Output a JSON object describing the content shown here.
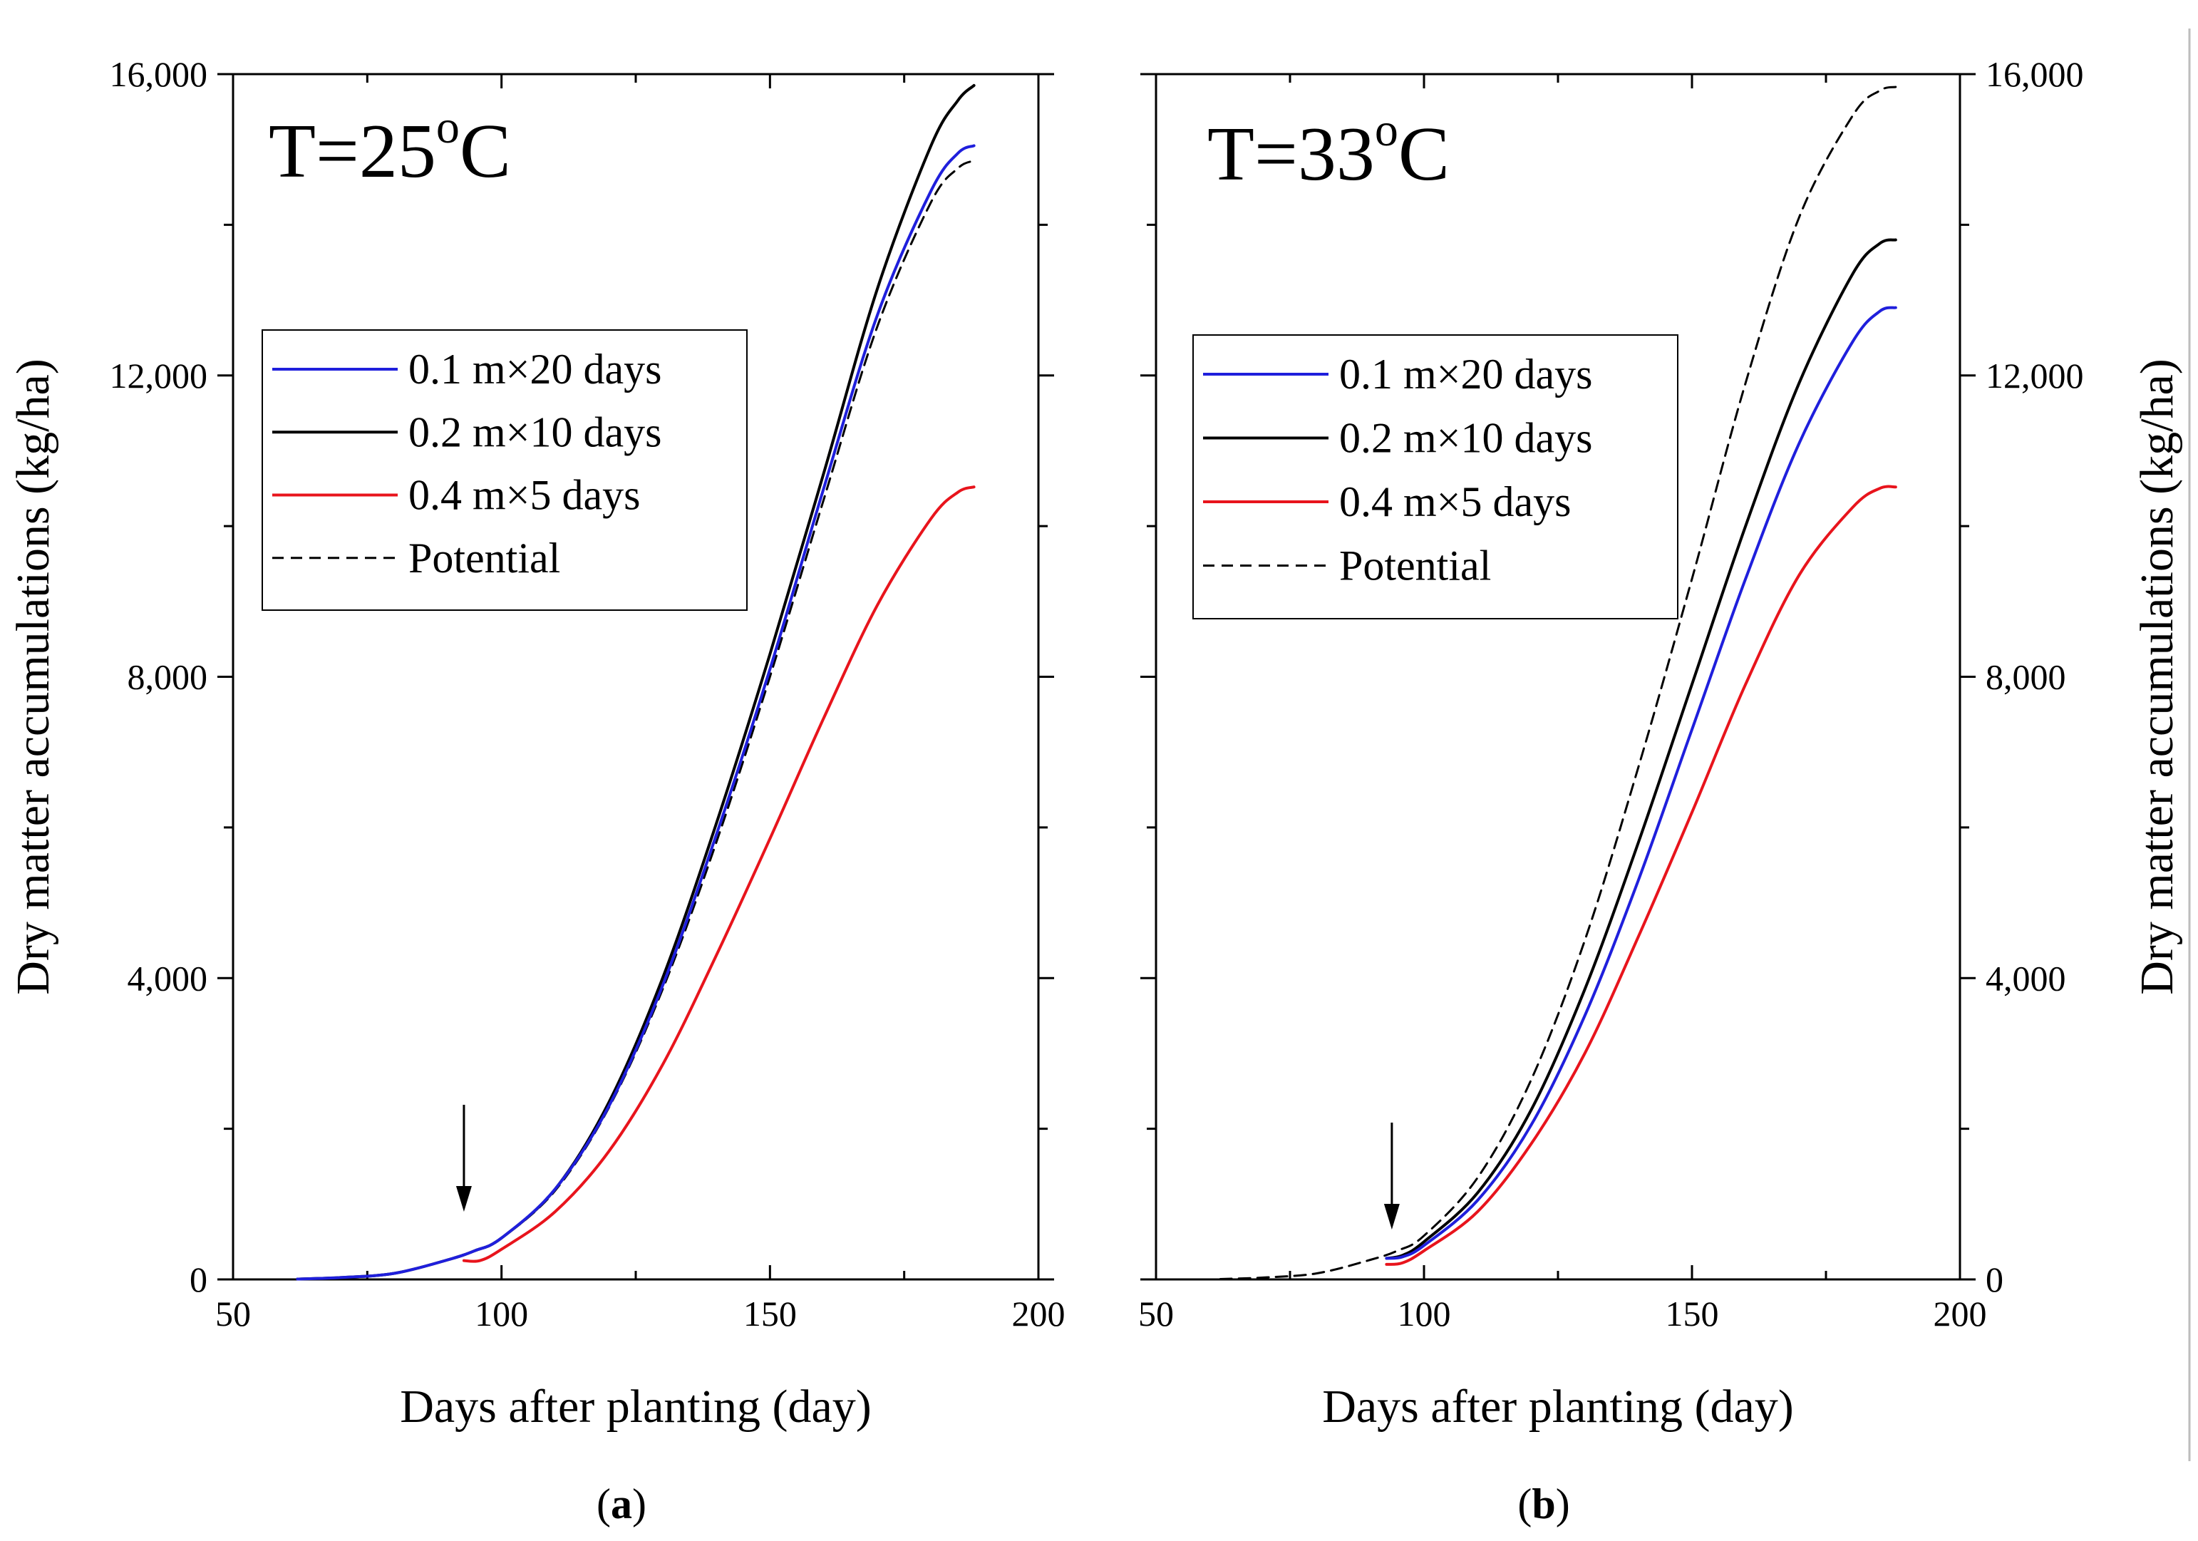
{
  "colors": {
    "blue": "#1f1fdc",
    "black": "#000000",
    "red": "#e8141c"
  },
  "chart_data": [
    {
      "type": "line",
      "panel": "a",
      "panel_label": {
        "open": "(",
        "letter": "a",
        "close": ")"
      },
      "annotation": {
        "prefix": "T=25",
        "degree": "o",
        "unit": "C"
      },
      "xlabel": "Days after planting (day)",
      "ylabel": "Dry matter accumulations (kg/ha)",
      "xlim": [
        50,
        200
      ],
      "ylim": [
        0,
        16000
      ],
      "x_ticks": [
        50,
        100,
        150,
        200
      ],
      "x_tick_labels": [
        "50",
        "100",
        "150",
        "200"
      ],
      "y_ticks": [
        0,
        4000,
        8000,
        12000,
        16000
      ],
      "y_tick_labels": [
        "0",
        "4,000",
        "8,000",
        "12,000",
        "16,000"
      ],
      "y_axis_side": "left",
      "legend_position": "middle-left",
      "legend": [
        "0.1 m×20 days",
        "0.2 m×10 days",
        "0.4 m×5 days",
        "Potential"
      ],
      "arrow_at_day": 93,
      "series": [
        {
          "name": "0.1 m×20 days",
          "color": "blue",
          "style": "solid",
          "points": [
            [
              62,
              5
            ],
            [
              70,
              25
            ],
            [
              80,
              80
            ],
            [
              90,
              260
            ],
            [
              95,
              380
            ],
            [
              100,
              550
            ],
            [
              110,
              1200
            ],
            [
              120,
              2300
            ],
            [
              130,
              3900
            ],
            [
              140,
              5900
            ],
            [
              150,
              8100
            ],
            [
              160,
              10500
            ],
            [
              170,
              12800
            ],
            [
              180,
              14450
            ],
            [
              185,
              14950
            ],
            [
              188,
              15050
            ]
          ]
        },
        {
          "name": "0.2 m×10 days",
          "color": "black",
          "style": "solid",
          "points": [
            [
              62,
              5
            ],
            [
              70,
              25
            ],
            [
              80,
              80
            ],
            [
              90,
              260
            ],
            [
              95,
              380
            ],
            [
              100,
              550
            ],
            [
              110,
              1200
            ],
            [
              120,
              2350
            ],
            [
              130,
              4000
            ],
            [
              140,
              6050
            ],
            [
              150,
              8300
            ],
            [
              160,
              10700
            ],
            [
              170,
              13150
            ],
            [
              180,
              15050
            ],
            [
              185,
              15650
            ],
            [
              188,
              15850
            ]
          ]
        },
        {
          "name": "0.4 m×5 days",
          "color": "red",
          "style": "solid",
          "points": [
            [
              93,
              250
            ],
            [
              96,
              250
            ],
            [
              100,
              400
            ],
            [
              110,
              900
            ],
            [
              120,
              1700
            ],
            [
              130,
              2850
            ],
            [
              140,
              4300
            ],
            [
              150,
              5850
            ],
            [
              160,
              7450
            ],
            [
              170,
              8950
            ],
            [
              180,
              10100
            ],
            [
              185,
              10450
            ],
            [
              188,
              10520
            ]
          ]
        },
        {
          "name": "Potential",
          "color": "black",
          "style": "dashed",
          "points": [
            [
              62,
              5
            ],
            [
              70,
              25
            ],
            [
              80,
              80
            ],
            [
              90,
              260
            ],
            [
              95,
              380
            ],
            [
              100,
              550
            ],
            [
              110,
              1180
            ],
            [
              120,
              2280
            ],
            [
              130,
              3850
            ],
            [
              140,
              5800
            ],
            [
              150,
              8000
            ],
            [
              160,
              10350
            ],
            [
              170,
              12650
            ],
            [
              180,
              14300
            ],
            [
              185,
              14750
            ],
            [
              188,
              14850
            ]
          ]
        }
      ]
    },
    {
      "type": "line",
      "panel": "b",
      "panel_label": {
        "open": "(",
        "letter": "b",
        "close": ")"
      },
      "annotation": {
        "prefix": "T=33",
        "degree": "o",
        "unit": "C"
      },
      "xlabel": "Days after planting (day)",
      "ylabel": "Dry matter accumulations (kg/ha)",
      "xlim": [
        50,
        200
      ],
      "ylim": [
        0,
        16000
      ],
      "x_ticks": [
        50,
        100,
        150,
        200
      ],
      "x_tick_labels": [
        "50",
        "100",
        "150",
        "200"
      ],
      "y_ticks": [
        0,
        4000,
        8000,
        12000,
        16000
      ],
      "y_tick_labels": [
        "0",
        "4,000",
        "8,000",
        "12,000",
        "16,000"
      ],
      "y_axis_side": "right",
      "legend_position": "middle-left",
      "legend": [
        "0.1 m×20 days",
        "0.2 m×10 days",
        "0.4 m×5 days",
        "Potential"
      ],
      "arrow_at_day": 94,
      "series": [
        {
          "name": "0.1 m×20 days",
          "color": "blue",
          "style": "solid",
          "points": [
            [
              93,
              280
            ],
            [
              96,
              300
            ],
            [
              100,
              450
            ],
            [
              110,
              1050
            ],
            [
              120,
              2050
            ],
            [
              130,
              3500
            ],
            [
              140,
              5300
            ],
            [
              150,
              7300
            ],
            [
              160,
              9300
            ],
            [
              170,
              11100
            ],
            [
              180,
              12450
            ],
            [
              185,
              12850
            ],
            [
              188,
              12900
            ]
          ]
        },
        {
          "name": "0.2 m×10 days",
          "color": "black",
          "style": "solid",
          "points": [
            [
              93,
              280
            ],
            [
              96,
              320
            ],
            [
              100,
              500
            ],
            [
              110,
              1150
            ],
            [
              120,
              2250
            ],
            [
              130,
              3850
            ],
            [
              140,
              5800
            ],
            [
              150,
              7900
            ],
            [
              160,
              10000
            ],
            [
              170,
              11900
            ],
            [
              180,
              13350
            ],
            [
              185,
              13750
            ],
            [
              188,
              13800
            ]
          ]
        },
        {
          "name": "0.4 m×5 days",
          "color": "red",
          "style": "solid",
          "points": [
            [
              93,
              200
            ],
            [
              96,
              220
            ],
            [
              100,
              380
            ],
            [
              110,
              900
            ],
            [
              120,
              1800
            ],
            [
              130,
              3000
            ],
            [
              140,
              4550
            ],
            [
              150,
              6200
            ],
            [
              160,
              7900
            ],
            [
              170,
              9350
            ],
            [
              180,
              10250
            ],
            [
              185,
              10500
            ],
            [
              188,
              10520
            ]
          ]
        },
        {
          "name": "Potential",
          "color": "black",
          "style": "dashed",
          "points": [
            [
              62,
              5
            ],
            [
              70,
              25
            ],
            [
              80,
              80
            ],
            [
              90,
              260
            ],
            [
              95,
              380
            ],
            [
              100,
              580
            ],
            [
              110,
              1350
            ],
            [
              120,
              2650
            ],
            [
              130,
              4500
            ],
            [
              140,
              6800
            ],
            [
              150,
              9300
            ],
            [
              160,
              11900
            ],
            [
              170,
              14100
            ],
            [
              180,
              15450
            ],
            [
              185,
              15780
            ],
            [
              188,
              15830
            ]
          ]
        }
      ]
    }
  ]
}
